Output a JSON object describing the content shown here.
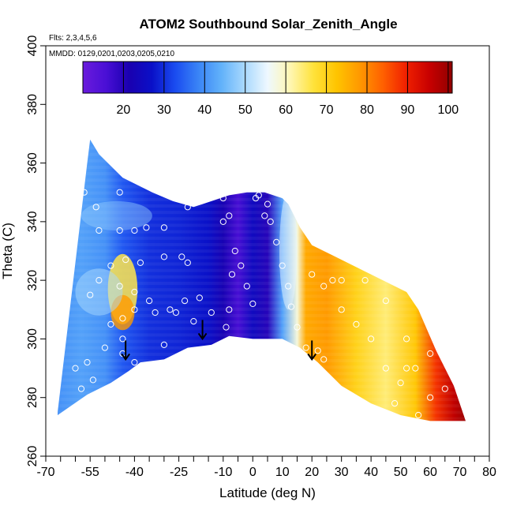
{
  "chart_data": {
    "type": "heatmap",
    "title": "ATOM2 Southbound Solar_Zenith_Angle",
    "subtitle_flights": "Flts: 2,3,4,5,6",
    "subtitle_dates": "MMDD: 0129,0201,0203,0205,0210",
    "xlabel": "Latitude (deg N)",
    "ylabel": "Theta (C)",
    "xlim": [
      -70,
      80
    ],
    "ylim": [
      260,
      400
    ],
    "x_ticks": [
      -70,
      -55,
      -40,
      -25,
      -10,
      0,
      10,
      20,
      30,
      40,
      50,
      60,
      70,
      80
    ],
    "x_minor_ticks": [
      -65,
      -60,
      -50,
      -45,
      -35,
      -30,
      -20,
      -15,
      -5,
      5,
      15,
      25,
      35,
      45,
      55,
      65,
      75
    ],
    "y_ticks": [
      260,
      280,
      300,
      320,
      340,
      360,
      380,
      400
    ],
    "colorbar": {
      "min": 10,
      "max": 101,
      "ticks": [
        20,
        30,
        40,
        50,
        60,
        70,
        80,
        90,
        100
      ],
      "colors": [
        "#6a1bdc",
        "#4a0fd6",
        "#1a00b0",
        "#0a10c8",
        "#1a4cf0",
        "#3a84f6",
        "#62b2fa",
        "#a8d8fd",
        "#eef8ff",
        "#fff6b0",
        "#ffe23a",
        "#ffc400",
        "#ff9800",
        "#ff6000",
        "#f02000",
        "#c80000",
        "#900000"
      ]
    },
    "top_boundary": [
      [
        -66,
        275
      ],
      [
        -56,
        360
      ],
      [
        -55,
        368
      ],
      [
        -52,
        363
      ],
      [
        -44,
        355
      ],
      [
        -34,
        350
      ],
      [
        -27,
        347
      ],
      [
        -20,
        345
      ],
      [
        -14,
        347
      ],
      [
        -8,
        349
      ],
      [
        -2,
        350
      ],
      [
        4,
        350
      ],
      [
        10,
        348
      ],
      [
        12,
        346
      ],
      [
        16,
        338
      ],
      [
        20,
        332
      ],
      [
        28,
        328
      ],
      [
        36,
        324
      ],
      [
        44,
        320
      ],
      [
        52,
        316
      ],
      [
        56,
        310
      ],
      [
        62,
        296
      ],
      [
        68,
        284
      ],
      [
        72,
        272
      ]
    ],
    "bottom_boundary": [
      [
        72,
        272
      ],
      [
        60,
        272
      ],
      [
        50,
        274
      ],
      [
        40,
        278
      ],
      [
        30,
        284
      ],
      [
        22,
        292
      ],
      [
        16,
        297
      ],
      [
        10,
        300
      ],
      [
        0,
        300
      ],
      [
        -8,
        301
      ],
      [
        -14,
        298
      ],
      [
        -22,
        297
      ],
      [
        -30,
        293
      ],
      [
        -38,
        292
      ],
      [
        -42,
        289
      ],
      [
        -48,
        285
      ],
      [
        -56,
        281
      ],
      [
        -66,
        274
      ]
    ],
    "field_stops": [
      {
        "lat": -66,
        "value": 40
      },
      {
        "lat": -58,
        "value": 42
      },
      {
        "lat": -50,
        "value": 40
      },
      {
        "lat": -44,
        "value": 34
      },
      {
        "lat": -35,
        "value": 30
      },
      {
        "lat": -25,
        "value": 29
      },
      {
        "lat": -15,
        "value": 27
      },
      {
        "lat": -10,
        "value": 22
      },
      {
        "lat": -5,
        "value": 16
      },
      {
        "lat": 0,
        "value": 25
      },
      {
        "lat": 5,
        "value": 20
      },
      {
        "lat": 10,
        "value": 42
      },
      {
        "lat": 15,
        "value": 58
      },
      {
        "lat": 18,
        "value": 76
      },
      {
        "lat": 25,
        "value": 78
      },
      {
        "lat": 35,
        "value": 70
      },
      {
        "lat": 45,
        "value": 64
      },
      {
        "lat": 55,
        "value": 72
      },
      {
        "lat": 62,
        "value": 88
      },
      {
        "lat": 68,
        "value": 96
      },
      {
        "lat": 72,
        "value": 100
      }
    ],
    "flight_points": [
      [
        -57,
        350
      ],
      [
        -53,
        345
      ],
      [
        -45,
        350
      ],
      [
        -52,
        337
      ],
      [
        -45,
        337
      ],
      [
        -40,
        337
      ],
      [
        -36,
        338
      ],
      [
        -30,
        338
      ],
      [
        -43,
        327
      ],
      [
        -38,
        326
      ],
      [
        -30,
        328
      ],
      [
        -24,
        328
      ],
      [
        -22,
        345
      ],
      [
        -48,
        325
      ],
      [
        -55,
        315
      ],
      [
        -52,
        320
      ],
      [
        -45,
        318
      ],
      [
        -40,
        316
      ],
      [
        -35,
        313
      ],
      [
        -28,
        310
      ],
      [
        -23,
        313
      ],
      [
        -18,
        314
      ],
      [
        -44,
        307
      ],
      [
        -40,
        310
      ],
      [
        -33,
        309
      ],
      [
        -26,
        309
      ],
      [
        -20,
        306
      ],
      [
        -14,
        309
      ],
      [
        -48,
        305
      ],
      [
        -44,
        300
      ],
      [
        -50,
        297
      ],
      [
        -56,
        292
      ],
      [
        -60,
        290
      ],
      [
        -58,
        283
      ],
      [
        -54,
        286
      ],
      [
        -44,
        295
      ],
      [
        -40,
        292
      ],
      [
        -30,
        298
      ],
      [
        -10,
        348
      ],
      [
        -8,
        342
      ],
      [
        -6,
        330
      ],
      [
        -4,
        325
      ],
      [
        -2,
        318
      ],
      [
        0,
        312
      ],
      [
        -7,
        322
      ],
      [
        -8,
        310
      ],
      [
        -9,
        304
      ],
      [
        -6,
        299
      ],
      [
        1,
        348
      ],
      [
        2,
        349
      ],
      [
        5,
        346
      ],
      [
        6,
        340
      ],
      [
        8,
        333
      ],
      [
        10,
        325
      ],
      [
        12,
        318
      ],
      [
        13,
        311
      ],
      [
        15,
        304
      ],
      [
        18,
        297
      ],
      [
        20,
        322
      ],
      [
        24,
        318
      ],
      [
        27,
        320
      ],
      [
        30,
        310
      ],
      [
        35,
        305
      ],
      [
        40,
        300
      ],
      [
        45,
        290
      ],
      [
        50,
        285
      ],
      [
        55,
        290
      ],
      [
        60,
        295
      ],
      [
        63,
        304
      ],
      [
        58,
        310
      ],
      [
        52,
        300
      ],
      [
        45,
        313
      ],
      [
        38,
        320
      ],
      [
        30,
        320
      ],
      [
        22,
        296
      ],
      [
        24,
        293
      ],
      [
        48,
        278
      ],
      [
        56,
        274
      ],
      [
        60,
        280
      ],
      [
        52,
        290
      ],
      [
        65,
        283
      ],
      [
        -10,
        340
      ],
      [
        12,
        348
      ],
      [
        4,
        342
      ],
      [
        16,
        343
      ],
      [
        -22,
        326
      ]
    ],
    "arrows": [
      [
        -43,
        293
      ],
      [
        -17,
        300
      ],
      [
        20,
        293
      ]
    ]
  }
}
